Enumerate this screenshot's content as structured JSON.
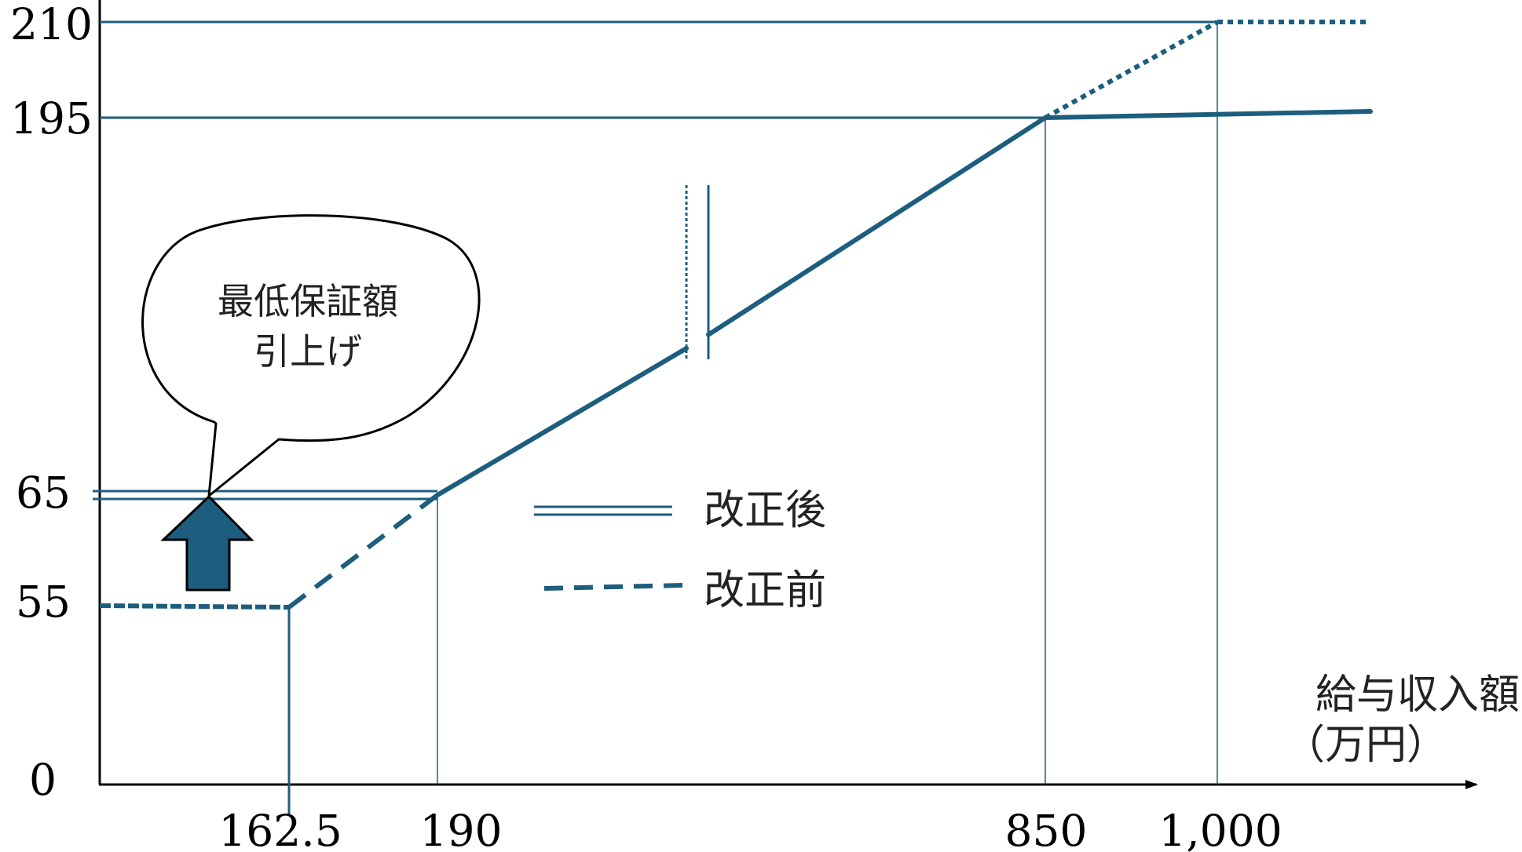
{
  "chart_data": {
    "type": "line",
    "title": "",
    "xlabel": "給与収入額",
    "xlabel_unit": "（万円）",
    "ylabel": "",
    "x_ticks": [
      "162.5",
      "190",
      "850",
      "1,000"
    ],
    "y_ticks": [
      "0",
      "55",
      "65",
      "195",
      "210"
    ],
    "axis_break": true,
    "grid": false,
    "legend_position": "center",
    "series": [
      {
        "name": "改正後",
        "line_style": "solid",
        "points": [
          [
            0,
            65
          ],
          [
            190,
            65
          ],
          [
            850,
            195
          ],
          [
            1000,
            195
          ]
        ]
      },
      {
        "name": "改正前",
        "line_style": "dashed",
        "points": [
          [
            0,
            55
          ],
          [
            162.5,
            55
          ],
          [
            190,
            65
          ],
          [
            850,
            195
          ],
          [
            1000,
            210
          ]
        ]
      }
    ],
    "annotation": {
      "callout_lines": [
        "最低保証額",
        "引上げ"
      ]
    }
  },
  "colors": {
    "line": "#1d5e7e",
    "arrow_fill": "#1d5e7e",
    "axis": "#000000"
  }
}
